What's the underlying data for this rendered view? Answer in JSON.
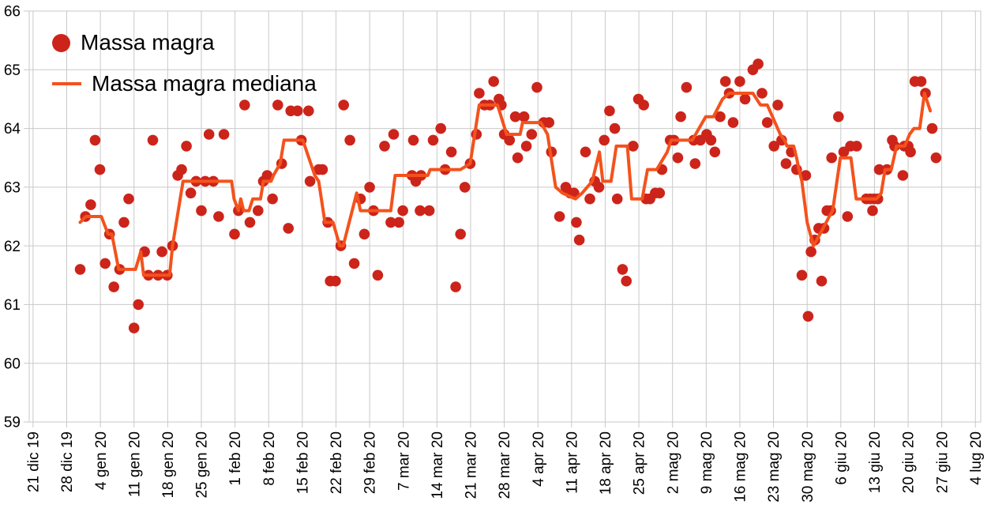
{
  "chart_data": {
    "type": "scatter",
    "title": "",
    "legend": [
      "Massa magra",
      "Massa magra mediana"
    ],
    "legend_position": "top-left-inside",
    "grid": true,
    "y_ticks": [
      59,
      60,
      61,
      62,
      63,
      64,
      65,
      66
    ],
    "ylim": [
      59,
      66
    ],
    "x_tick_labels": [
      "21 dic 19",
      "28 dic 19",
      "4 gen 20",
      "11 gen 20",
      "18 gen 20",
      "25 gen 20",
      "1 feb 20",
      "8 feb 20",
      "15 feb 20",
      "22 feb 20",
      "29 feb 20",
      "7 mar 20",
      "14 mar 20",
      "21 mar 20",
      "28 mar 20",
      "4 apr 20",
      "11 apr 20",
      "18 apr 20",
      "25 apr 20",
      "2 mag 20",
      "9 mag 20",
      "16 mag 20",
      "23 mag 20",
      "30 mag 20",
      "6 giu 20",
      "13 giu 20",
      "20 giu 20",
      "27 giu 20",
      "4 lug 20"
    ],
    "x_tick_interval_days": 7,
    "xlim_days": [
      -0.8,
      197.1
    ],
    "colors": {
      "scatter": "#cc241a",
      "line": "#f4521c",
      "grid": "#c9c9c9",
      "text": "#000000",
      "background": "#ffffff"
    },
    "series": [
      {
        "name": "Massa magra",
        "kind": "scatter",
        "color": "#cc241a",
        "points_day_value": [
          [
            9.8,
            61.6
          ],
          [
            10.9,
            62.5
          ],
          [
            12.0,
            62.7
          ],
          [
            12.9,
            63.8
          ],
          [
            13.9,
            63.3
          ],
          [
            15.0,
            61.7
          ],
          [
            15.9,
            62.2
          ],
          [
            16.8,
            61.3
          ],
          [
            18.0,
            61.6
          ],
          [
            18.9,
            62.4
          ],
          [
            19.9,
            62.8
          ],
          [
            21.0,
            60.6
          ],
          [
            21.9,
            61.0
          ],
          [
            23.2,
            61.9
          ],
          [
            24.0,
            61.5
          ],
          [
            24.9,
            63.8
          ],
          [
            26.0,
            61.5
          ],
          [
            26.8,
            61.9
          ],
          [
            27.9,
            61.5
          ],
          [
            29.0,
            62.0
          ],
          [
            30.1,
            63.2
          ],
          [
            30.9,
            63.3
          ],
          [
            31.9,
            63.7
          ],
          [
            32.8,
            62.9
          ],
          [
            33.9,
            63.1
          ],
          [
            35.0,
            62.6
          ],
          [
            35.8,
            63.1
          ],
          [
            36.6,
            63.9
          ],
          [
            37.5,
            63.1
          ],
          [
            38.6,
            62.5
          ],
          [
            39.7,
            63.9
          ],
          [
            41.9,
            62.2
          ],
          [
            42.7,
            62.6
          ],
          [
            44.0,
            64.4
          ],
          [
            45.1,
            62.4
          ],
          [
            46.8,
            62.6
          ],
          [
            47.9,
            63.1
          ],
          [
            48.7,
            63.2
          ],
          [
            49.8,
            62.8
          ],
          [
            50.9,
            64.4
          ],
          [
            51.7,
            63.4
          ],
          [
            53.1,
            62.3
          ],
          [
            53.6,
            64.3
          ],
          [
            55.0,
            64.3
          ],
          [
            55.8,
            63.8
          ],
          [
            57.3,
            64.3
          ],
          [
            57.6,
            63.1
          ],
          [
            59.4,
            63.3
          ],
          [
            60.2,
            63.3
          ],
          [
            61.3,
            62.4
          ],
          [
            61.8,
            61.4
          ],
          [
            62.9,
            61.4
          ],
          [
            64.0,
            62.0
          ],
          [
            64.6,
            64.4
          ],
          [
            65.9,
            63.8
          ],
          [
            66.8,
            61.7
          ],
          [
            68.1,
            62.8
          ],
          [
            68.9,
            62.2
          ],
          [
            70.0,
            63.0
          ],
          [
            70.8,
            62.6
          ],
          [
            71.7,
            61.5
          ],
          [
            73.1,
            63.7
          ],
          [
            74.4,
            62.4
          ],
          [
            75.0,
            63.9
          ],
          [
            76.1,
            62.4
          ],
          [
            76.9,
            62.6
          ],
          [
            78.8,
            63.2
          ],
          [
            79.1,
            63.8
          ],
          [
            79.6,
            63.1
          ],
          [
            80.5,
            62.6
          ],
          [
            80.7,
            63.2
          ],
          [
            82.4,
            62.6
          ],
          [
            83.2,
            63.8
          ],
          [
            84.8,
            64.0
          ],
          [
            85.7,
            63.3
          ],
          [
            87.0,
            63.6
          ],
          [
            87.9,
            61.3
          ],
          [
            88.9,
            62.2
          ],
          [
            89.8,
            63.0
          ],
          [
            90.9,
            63.4
          ],
          [
            92.2,
            63.9
          ],
          [
            92.8,
            64.6
          ],
          [
            93.9,
            64.4
          ],
          [
            95.0,
            64.4
          ],
          [
            95.8,
            64.8
          ],
          [
            96.9,
            64.5
          ],
          [
            97.4,
            64.4
          ],
          [
            98.0,
            63.9
          ],
          [
            99.1,
            63.8
          ],
          [
            100.3,
            64.2
          ],
          [
            100.8,
            63.5
          ],
          [
            102.1,
            64.2
          ],
          [
            102.6,
            63.7
          ],
          [
            103.7,
            63.9
          ],
          [
            104.8,
            64.7
          ],
          [
            106.2,
            64.1
          ],
          [
            107.3,
            64.1
          ],
          [
            107.8,
            63.6
          ],
          [
            109.5,
            62.5
          ],
          [
            110.8,
            63.0
          ],
          [
            111.7,
            62.9
          ],
          [
            112.5,
            62.9
          ],
          [
            113.0,
            62.4
          ],
          [
            113.6,
            62.1
          ],
          [
            114.9,
            63.6
          ],
          [
            115.8,
            62.8
          ],
          [
            116.8,
            63.1
          ],
          [
            117.7,
            63.0
          ],
          [
            118.8,
            63.8
          ],
          [
            119.9,
            64.3
          ],
          [
            121.0,
            64.0
          ],
          [
            121.5,
            62.8
          ],
          [
            122.6,
            61.6
          ],
          [
            123.4,
            61.4
          ],
          [
            124.8,
            63.7
          ],
          [
            125.9,
            64.5
          ],
          [
            127.0,
            64.4
          ],
          [
            127.5,
            62.8
          ],
          [
            128.3,
            62.8
          ],
          [
            129.4,
            62.9
          ],
          [
            130.3,
            62.9
          ],
          [
            130.8,
            63.3
          ],
          [
            132.5,
            63.8
          ],
          [
            133.3,
            63.8
          ],
          [
            134.1,
            63.5
          ],
          [
            134.7,
            64.2
          ],
          [
            135.9,
            64.7
          ],
          [
            137.4,
            63.8
          ],
          [
            137.7,
            63.4
          ],
          [
            138.8,
            63.8
          ],
          [
            140.1,
            63.9
          ],
          [
            141.0,
            63.8
          ],
          [
            141.8,
            63.6
          ],
          [
            142.9,
            64.2
          ],
          [
            144.0,
            64.8
          ],
          [
            144.8,
            64.6
          ],
          [
            145.6,
            64.1
          ],
          [
            147.0,
            64.8
          ],
          [
            148.1,
            64.5
          ],
          [
            149.7,
            65.0
          ],
          [
            150.8,
            65.1
          ],
          [
            151.6,
            64.6
          ],
          [
            152.7,
            64.1
          ],
          [
            154.1,
            63.7
          ],
          [
            154.9,
            64.4
          ],
          [
            155.7,
            63.8
          ],
          [
            156.6,
            63.4
          ],
          [
            157.7,
            63.6
          ],
          [
            158.8,
            63.3
          ],
          [
            159.9,
            61.5
          ],
          [
            160.7,
            63.2
          ],
          [
            161.2,
            60.8
          ],
          [
            161.8,
            61.9
          ],
          [
            162.6,
            62.1
          ],
          [
            163.4,
            62.3
          ],
          [
            164.0,
            61.4
          ],
          [
            164.5,
            62.3
          ],
          [
            165.1,
            62.6
          ],
          [
            165.9,
            62.6
          ],
          [
            166.1,
            63.5
          ],
          [
            167.5,
            64.2
          ],
          [
            168.6,
            63.6
          ],
          [
            169.4,
            62.5
          ],
          [
            170.0,
            63.7
          ],
          [
            171.3,
            63.7
          ],
          [
            173.3,
            62.8
          ],
          [
            174.1,
            62.8
          ],
          [
            174.6,
            62.6
          ],
          [
            174.9,
            62.8
          ],
          [
            175.7,
            62.8
          ],
          [
            176.0,
            63.3
          ],
          [
            177.6,
            63.3
          ],
          [
            178.7,
            63.8
          ],
          [
            179.2,
            63.7
          ],
          [
            180.9,
            63.2
          ],
          [
            181.2,
            63.7
          ],
          [
            182.0,
            63.7
          ],
          [
            182.5,
            63.6
          ],
          [
            183.4,
            64.8
          ],
          [
            184.7,
            64.8
          ],
          [
            185.6,
            64.6
          ],
          [
            187.0,
            64.0
          ],
          [
            187.8,
            63.5
          ]
        ]
      },
      {
        "name": "Massa magra mediana",
        "kind": "line",
        "color": "#f4521c",
        "points_day_value": [
          [
            9.8,
            62.4
          ],
          [
            11.0,
            62.5
          ],
          [
            14.2,
            62.5
          ],
          [
            15.6,
            62.2
          ],
          [
            16.4,
            62.2
          ],
          [
            17.8,
            61.6
          ],
          [
            21.3,
            61.6
          ],
          [
            22.4,
            61.9
          ],
          [
            23.0,
            61.5
          ],
          [
            28.4,
            61.5
          ],
          [
            29.0,
            62.0
          ],
          [
            31.2,
            63.1
          ],
          [
            41.3,
            63.1
          ],
          [
            41.8,
            62.8
          ],
          [
            42.7,
            62.6
          ],
          [
            43.2,
            62.8
          ],
          [
            43.8,
            62.6
          ],
          [
            44.9,
            62.6
          ],
          [
            45.7,
            62.8
          ],
          [
            47.3,
            62.8
          ],
          [
            47.9,
            63.1
          ],
          [
            49.5,
            63.1
          ],
          [
            50.0,
            63.2
          ],
          [
            51.4,
            63.4
          ],
          [
            52.2,
            63.8
          ],
          [
            56.1,
            63.8
          ],
          [
            58.6,
            63.2
          ],
          [
            59.4,
            63.1
          ],
          [
            60.7,
            62.4
          ],
          [
            62.4,
            62.4
          ],
          [
            63.8,
            62.0
          ],
          [
            64.5,
            62.0
          ],
          [
            67.3,
            62.9
          ],
          [
            68.1,
            62.6
          ],
          [
            74.4,
            62.6
          ],
          [
            75.3,
            63.2
          ],
          [
            82.1,
            63.2
          ],
          [
            82.6,
            63.3
          ],
          [
            88.9,
            63.3
          ],
          [
            90.9,
            63.4
          ],
          [
            92.8,
            64.4
          ],
          [
            96.6,
            64.4
          ],
          [
            98.5,
            63.9
          ],
          [
            101.3,
            63.9
          ],
          [
            101.8,
            64.1
          ],
          [
            105.6,
            64.1
          ],
          [
            107.0,
            63.9
          ],
          [
            108.7,
            63.0
          ],
          [
            110.1,
            62.9
          ],
          [
            112.8,
            62.8
          ],
          [
            114.2,
            62.9
          ],
          [
            116.3,
            63.1
          ],
          [
            117.8,
            63.6
          ],
          [
            118.5,
            63.1
          ],
          [
            120.2,
            63.1
          ],
          [
            121.3,
            63.7
          ],
          [
            123.6,
            63.7
          ],
          [
            124.5,
            62.8
          ],
          [
            126.7,
            62.8
          ],
          [
            127.8,
            63.3
          ],
          [
            129.7,
            63.3
          ],
          [
            131.9,
            63.6
          ],
          [
            132.7,
            63.8
          ],
          [
            137.1,
            63.8
          ],
          [
            139.9,
            64.2
          ],
          [
            141.5,
            64.2
          ],
          [
            143.4,
            64.5
          ],
          [
            144.8,
            64.6
          ],
          [
            149.7,
            64.6
          ],
          [
            151.3,
            64.4
          ],
          [
            152.7,
            64.4
          ],
          [
            153.8,
            64.2
          ],
          [
            155.4,
            63.9
          ],
          [
            156.3,
            63.8
          ],
          [
            156.8,
            63.7
          ],
          [
            158.2,
            63.7
          ],
          [
            158.8,
            63.5
          ],
          [
            159.3,
            63.3
          ],
          [
            159.9,
            63.1
          ],
          [
            161.0,
            62.4
          ],
          [
            162.3,
            62.0
          ],
          [
            163.0,
            62.1
          ],
          [
            164.3,
            62.3
          ],
          [
            165.6,
            62.5
          ],
          [
            166.3,
            62.6
          ],
          [
            167.9,
            63.5
          ],
          [
            170.1,
            63.5
          ],
          [
            171.2,
            62.8
          ],
          [
            174.3,
            62.8
          ],
          [
            174.7,
            62.8
          ],
          [
            175.4,
            62.8
          ],
          [
            176.4,
            62.9
          ],
          [
            177.2,
            63.3
          ],
          [
            178.5,
            63.3
          ],
          [
            179.6,
            63.7
          ],
          [
            181.3,
            63.7
          ],
          [
            182.3,
            63.9
          ],
          [
            183.2,
            64.0
          ],
          [
            184.4,
            64.0
          ],
          [
            185.4,
            64.6
          ],
          [
            186.6,
            64.3
          ]
        ]
      }
    ]
  }
}
